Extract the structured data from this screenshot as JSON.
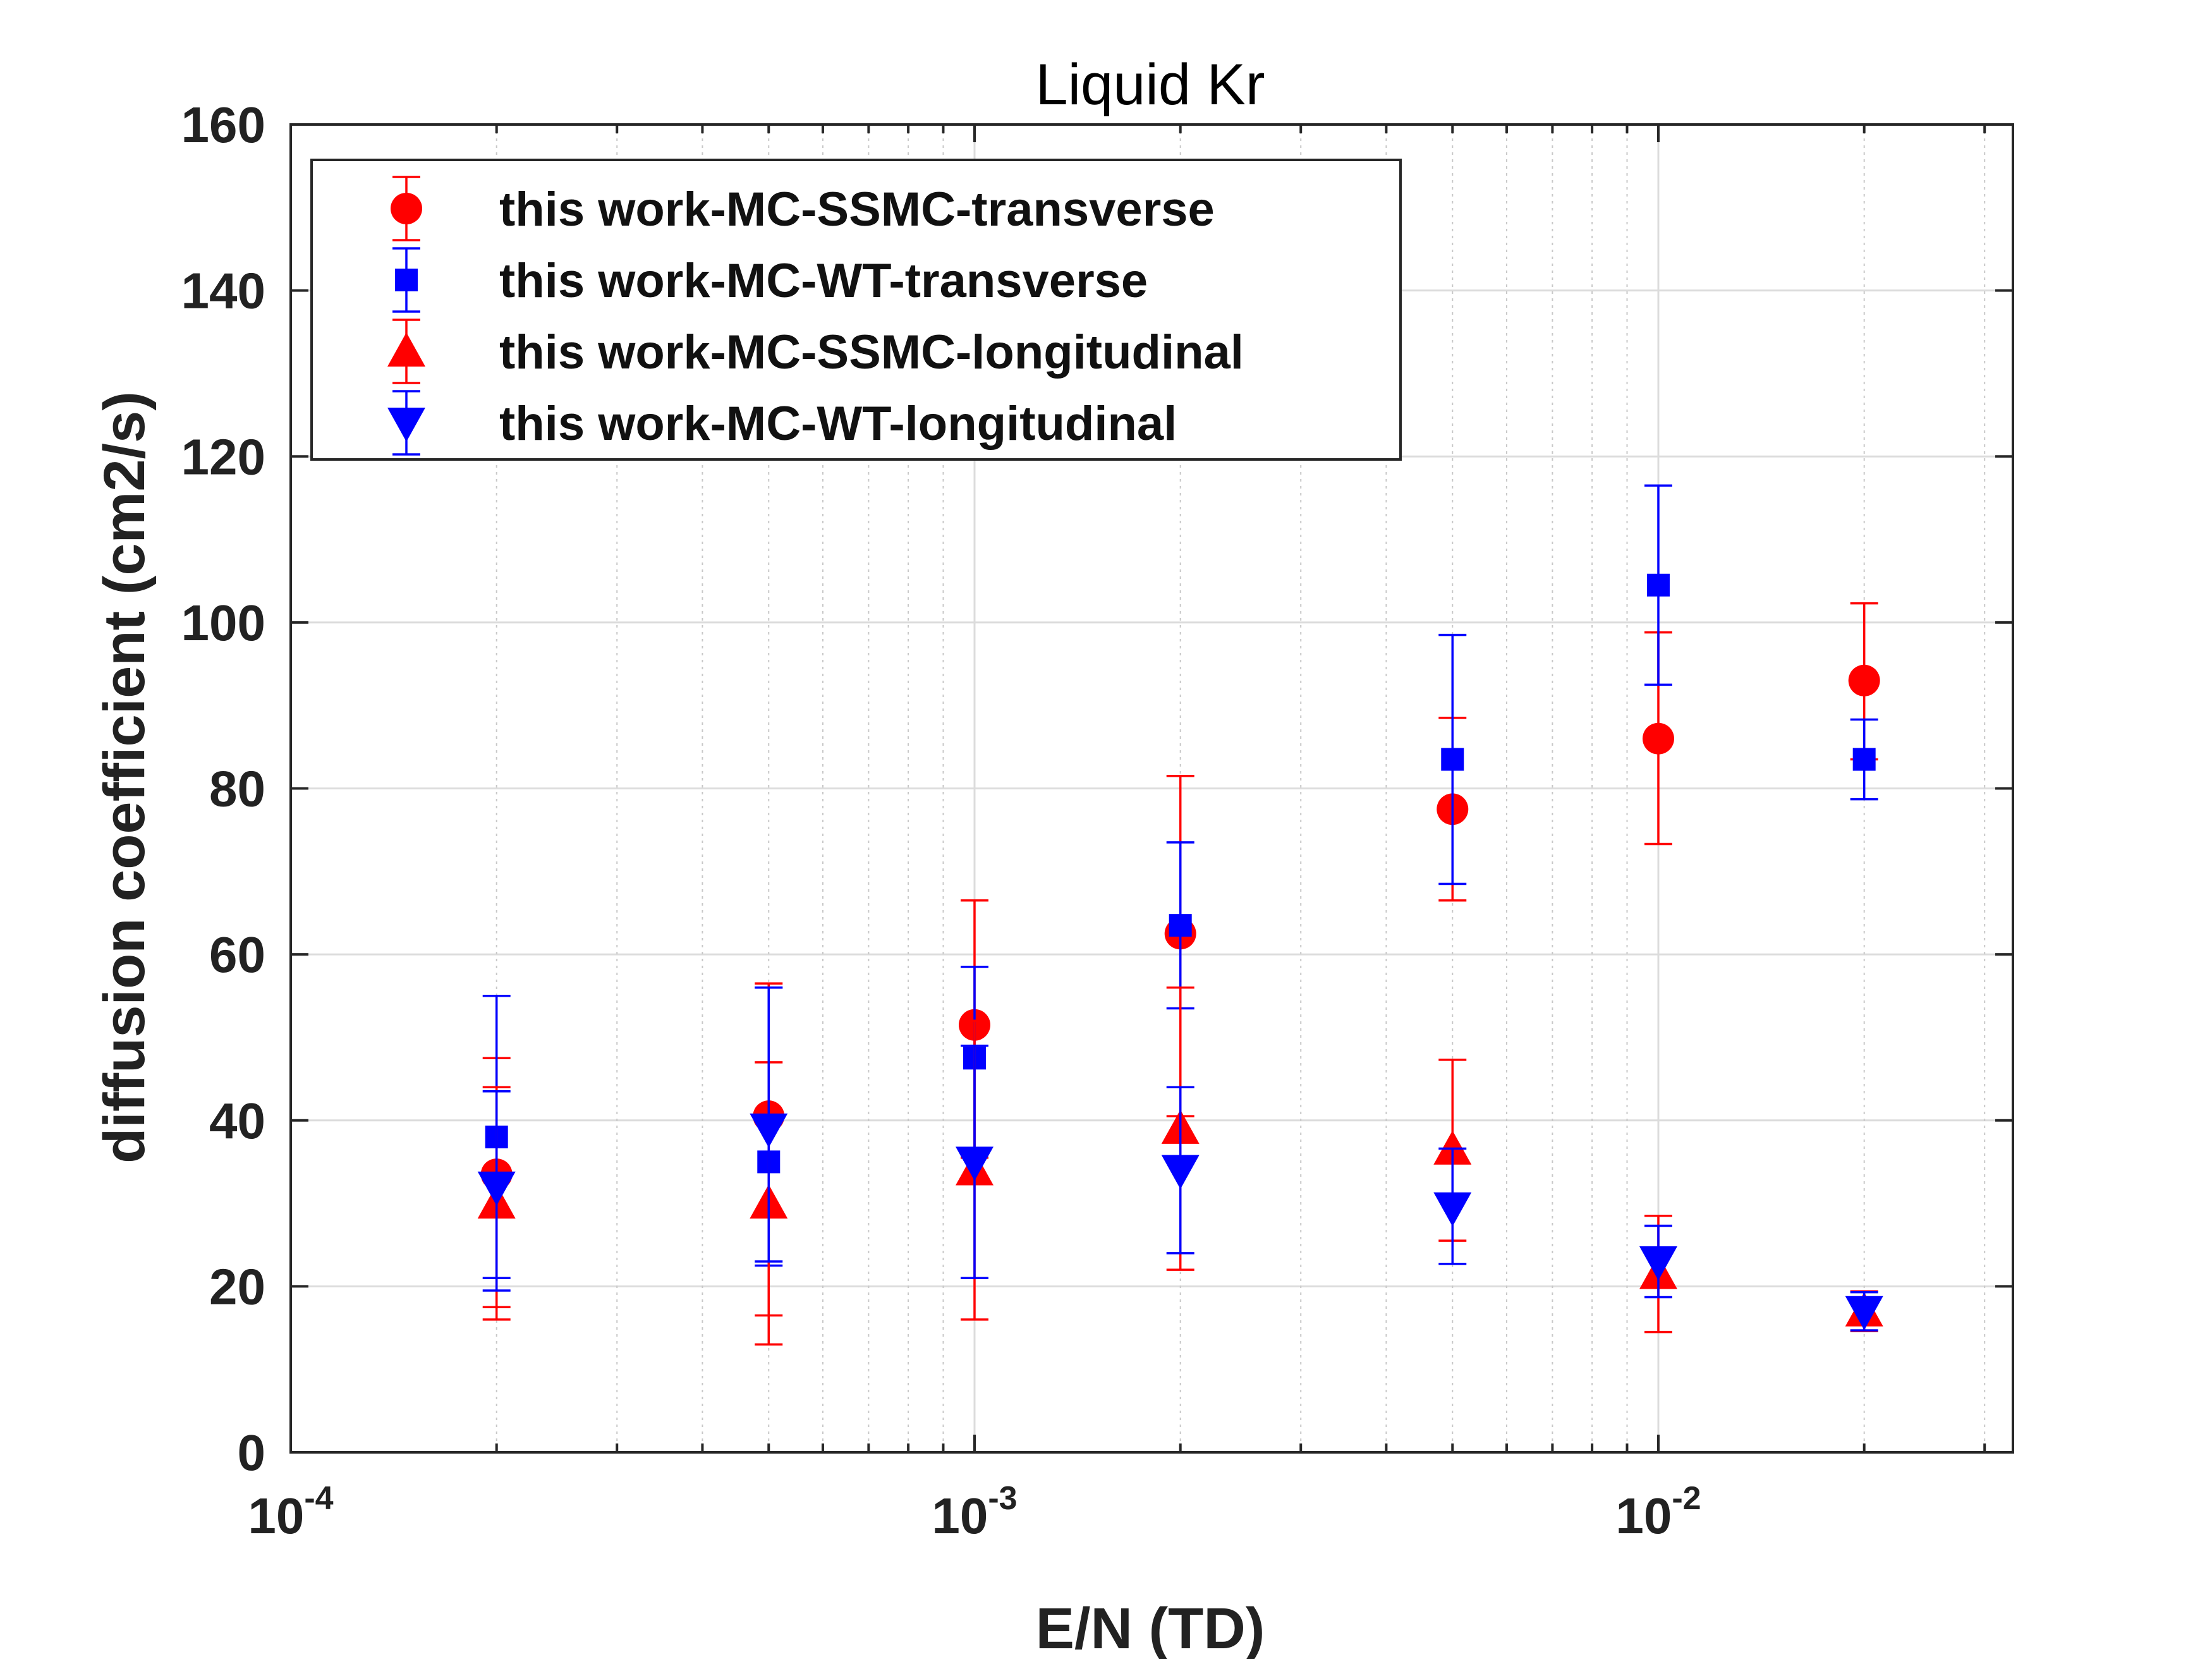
{
  "chart_data": {
    "type": "scatter",
    "title": "Liquid Kr",
    "xlabel": "E/N (TD)",
    "ylabel": "diffusion coefficient (cm2/s)",
    "xscale": "log",
    "xlim": [
      0.0001,
      0.033
    ],
    "ylim": [
      0,
      160
    ],
    "yticks": [
      0,
      20,
      40,
      60,
      80,
      100,
      120,
      140,
      160
    ],
    "xticks": [
      {
        "value": 0.0001,
        "base": "10",
        "exp": "-4"
      },
      {
        "value": 0.001,
        "base": "10",
        "exp": "-3"
      },
      {
        "value": 0.01,
        "base": "10",
        "exp": "-2"
      }
    ],
    "grid": true,
    "legend_position": "top-left",
    "series": [
      {
        "name": "this work-MC-SSMC-transverse",
        "marker": "circle",
        "color": "#ff0000",
        "x": [
          0.0002,
          0.0005,
          0.001,
          0.002,
          0.005,
          0.01,
          0.02
        ],
        "y": [
          33.5,
          40.5,
          51.5,
          62.5,
          77.5,
          86,
          93
        ],
        "err_low": [
          17.5,
          16.5,
          35.5,
          40.5,
          66.5,
          73.3,
          83.5
        ],
        "err_high": [
          47.5,
          56.5,
          66.5,
          81.5,
          88.5,
          98.8,
          102.3
        ]
      },
      {
        "name": "this work-MC-WT-transverse",
        "marker": "square",
        "color": "#0000ff",
        "x": [
          0.0002,
          0.0005,
          0.001,
          0.002,
          0.005,
          0.01,
          0.02
        ],
        "y": [
          38,
          35,
          47.5,
          63.5,
          83.5,
          104.5,
          83.5
        ],
        "err_low": [
          21,
          22.5,
          36.5,
          53.5,
          68.5,
          92.5,
          78.7
        ],
        "err_high": [
          55,
          56,
          58.5,
          73.5,
          98.5,
          116.5,
          88.3
        ]
      },
      {
        "name": "this work-MC-SSMC-longitudinal",
        "marker": "triangle-up",
        "color": "#ff0000",
        "x": [
          0.0002,
          0.0005,
          0.001,
          0.002,
          0.005,
          0.01,
          0.02
        ],
        "y": [
          30,
          30,
          34,
          39,
          36.5,
          21.5,
          17
        ],
        "err_low": [
          16,
          13,
          16,
          22,
          25.5,
          14.5,
          14.6
        ],
        "err_high": [
          44,
          47,
          52,
          56,
          47.3,
          28.5,
          19.4
        ]
      },
      {
        "name": "this work-MC-WT-longitudinal",
        "marker": "triangle-down",
        "color": "#0000ff",
        "x": [
          0.0002,
          0.0005,
          0.001,
          0.002,
          0.005,
          0.01,
          0.02
        ],
        "y": [
          32,
          39,
          35,
          34,
          29.5,
          23,
          17
        ],
        "err_low": [
          19.5,
          23,
          21,
          24,
          22.7,
          18.7,
          14.7
        ],
        "err_high": [
          43.5,
          56,
          49,
          44,
          36.6,
          27.3,
          19.3
        ]
      }
    ]
  }
}
